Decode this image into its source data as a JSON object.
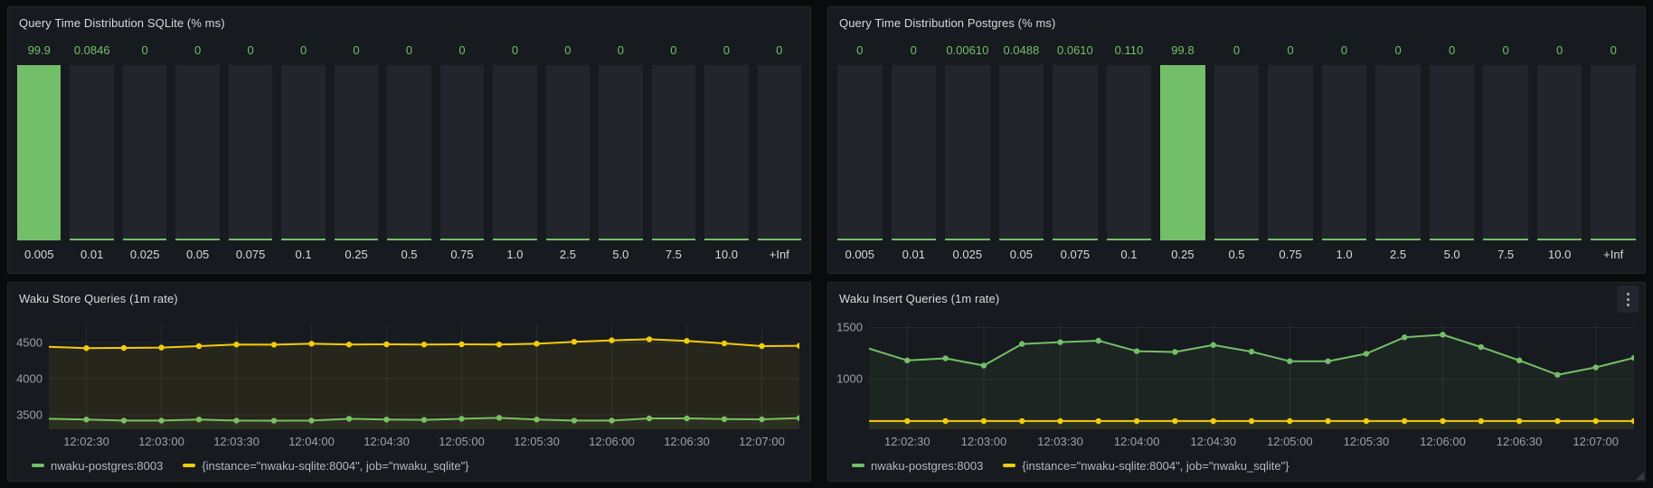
{
  "theme": {
    "canvas_bg": "#0a0b0d",
    "panel_bg": "#171a1e",
    "panel_border": "#25272d",
    "bar_track": "#22252b",
    "green": "#73bf69",
    "yellow": "#f2cc0c",
    "grid_color": "rgba(204,204,220,0.09)",
    "text_primary": "#d8d9da",
    "text_axis": "rgba(204,204,220,0.75)"
  },
  "panel_menu_icon": "kebab-menu-icon",
  "chart_data": [
    {
      "type": "bar",
      "title": "Query Time Distribution SQLite (% ms)",
      "categories": [
        "0.005",
        "0.01",
        "0.025",
        "0.05",
        "0.075",
        "0.1",
        "0.25",
        "0.5",
        "0.75",
        "1.0",
        "2.5",
        "5.0",
        "7.5",
        "10.0",
        "+Inf"
      ],
      "values": [
        99.9,
        0.0846,
        0,
        0,
        0,
        0,
        0,
        0,
        0,
        0,
        0,
        0,
        0,
        0,
        0
      ],
      "value_labels": [
        "99.9",
        "0.0846",
        "0",
        "0",
        "0",
        "0",
        "0",
        "0",
        "0",
        "0",
        "0",
        "0",
        "0",
        "0",
        "0"
      ],
      "ylim": [
        0,
        100
      ],
      "bar_color": "#73bf69",
      "bar_track_color": "#22252b",
      "value_label_color": "#73bf69"
    },
    {
      "type": "bar",
      "title": "Query Time Distribution Postgres (% ms)",
      "categories": [
        "0.005",
        "0.01",
        "0.025",
        "0.05",
        "0.075",
        "0.1",
        "0.25",
        "0.5",
        "0.75",
        "1.0",
        "2.5",
        "5.0",
        "7.5",
        "10.0",
        "+Inf"
      ],
      "values": [
        0,
        0,
        0.0061,
        0.0488,
        0.061,
        0.11,
        99.8,
        0,
        0,
        0,
        0,
        0,
        0,
        0,
        0
      ],
      "value_labels": [
        "0",
        "0",
        "0.00610",
        "0.0488",
        "0.0610",
        "0.110",
        "99.8",
        "0",
        "0",
        "0",
        "0",
        "0",
        "0",
        "0",
        "0"
      ],
      "ylim": [
        0,
        100
      ],
      "bar_color": "#73bf69",
      "bar_track_color": "#22252b",
      "value_label_color": "#73bf69"
    },
    {
      "type": "line",
      "title": "Waku Store Queries (1m rate)",
      "x": [
        "12:02:15",
        "12:02:30",
        "12:02:45",
        "12:03:00",
        "12:03:15",
        "12:03:30",
        "12:03:45",
        "12:04:00",
        "12:04:15",
        "12:04:30",
        "12:04:45",
        "12:05:00",
        "12:05:15",
        "12:05:30",
        "12:05:45",
        "12:06:00",
        "12:06:15",
        "12:06:30",
        "12:06:45",
        "12:07:00",
        "12:07:15"
      ],
      "x_ticks": [
        "12:02:30",
        "12:03:00",
        "12:03:30",
        "12:04:00",
        "12:04:30",
        "12:05:00",
        "12:05:30",
        "12:06:00",
        "12:06:30",
        "12:07:00"
      ],
      "yticks": [
        3500,
        4000,
        4500
      ],
      "ylim": [
        3300,
        4750
      ],
      "grid": true,
      "legend_position": "bottom-left",
      "series": [
        {
          "name": "nwaku-postgres:8003",
          "color": "#73bf69",
          "values": [
            3445,
            3435,
            3420,
            3420,
            3435,
            3420,
            3418,
            3420,
            3445,
            3435,
            3430,
            3445,
            3458,
            3435,
            3420,
            3420,
            3450,
            3450,
            3440,
            3438,
            3455
          ]
        },
        {
          "name": "{instance=\"nwaku-sqlite:8004\", job=\"nwaku_sqlite\"}",
          "color": "#f2cc0c",
          "values": [
            4440,
            4422,
            4425,
            4430,
            4450,
            4472,
            4470,
            4483,
            4472,
            4475,
            4472,
            4475,
            4472,
            4483,
            4510,
            4530,
            4545,
            4522,
            4488,
            4450,
            4455
          ]
        }
      ]
    },
    {
      "type": "line",
      "title": "Waku Insert Queries (1m rate)",
      "x": [
        "12:02:15",
        "12:02:30",
        "12:02:45",
        "12:03:00",
        "12:03:15",
        "12:03:30",
        "12:03:45",
        "12:04:00",
        "12:04:15",
        "12:04:30",
        "12:04:45",
        "12:05:00",
        "12:05:15",
        "12:05:30",
        "12:05:45",
        "12:06:00",
        "12:06:15",
        "12:06:30",
        "12:06:45",
        "12:07:00",
        "12:07:15"
      ],
      "x_ticks": [
        "12:02:30",
        "12:03:00",
        "12:03:30",
        "12:04:00",
        "12:04:30",
        "12:05:00",
        "12:05:30",
        "12:06:00",
        "12:06:30",
        "12:07:00"
      ],
      "yticks": [
        1000,
        1500
      ],
      "ylim": [
        510,
        1530
      ],
      "grid": true,
      "legend_position": "bottom-left",
      "series": [
        {
          "name": "nwaku-postgres:8003",
          "color": "#73bf69",
          "values": [
            1295,
            1180,
            1200,
            1130,
            1340,
            1357,
            1372,
            1270,
            1262,
            1330,
            1265,
            1172,
            1172,
            1245,
            1405,
            1430,
            1310,
            1180,
            1040,
            1112,
            1205
          ]
        },
        {
          "name": "{instance=\"nwaku-sqlite:8004\", job=\"nwaku_sqlite\"}",
          "color": "#f2cc0c",
          "values": [
            590,
            590,
            590,
            590,
            590,
            590,
            590,
            590,
            590,
            590,
            590,
            590,
            590,
            590,
            590,
            590,
            590,
            590,
            590,
            590,
            590
          ]
        }
      ]
    }
  ]
}
